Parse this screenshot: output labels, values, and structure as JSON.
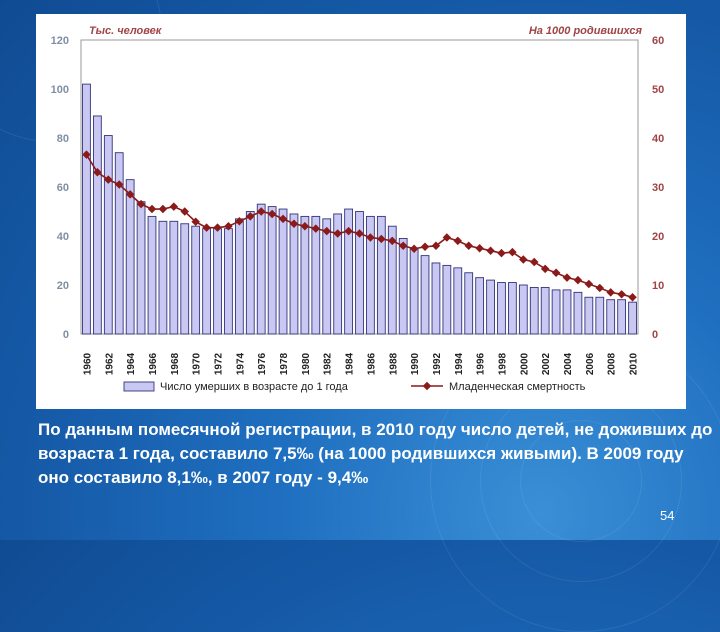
{
  "chart_data": {
    "type": "bar+line",
    "left_axis_label": "Тыс. человек",
    "right_axis_label": "На 1000 родившихся",
    "left_ylim": [
      0,
      120
    ],
    "right_ylim": [
      0,
      60
    ],
    "left_ticks": [
      "0",
      "20",
      "40",
      "60",
      "80",
      "100",
      "120"
    ],
    "right_ticks": [
      "0",
      "10",
      "20",
      "30",
      "40",
      "50",
      "60"
    ],
    "x_tick_labels": [
      "1960",
      "1962",
      "1964",
      "1966",
      "1968",
      "1970",
      "1972",
      "1974",
      "1976",
      "1978",
      "1980",
      "1982",
      "1984",
      "1986",
      "1988",
      "1990",
      "1992",
      "1994",
      "1996",
      "1998",
      "2000",
      "2002",
      "2004",
      "2006",
      "2008",
      "2010"
    ],
    "years": [
      1960,
      1961,
      1962,
      1963,
      1964,
      1965,
      1966,
      1967,
      1968,
      1969,
      1970,
      1971,
      1972,
      1973,
      1974,
      1975,
      1976,
      1977,
      1978,
      1979,
      1980,
      1981,
      1982,
      1983,
      1984,
      1985,
      1986,
      1987,
      1988,
      1989,
      1990,
      1991,
      1992,
      1993,
      1994,
      1995,
      1996,
      1997,
      1998,
      1999,
      2000,
      2001,
      2002,
      2003,
      2004,
      2005,
      2006,
      2007,
      2008,
      2009,
      2010
    ],
    "series": [
      {
        "name": "Число умерших в возрасте до 1 года",
        "type": "bar",
        "axis": "left",
        "color": "#c8c8f2",
        "values": [
          102,
          89,
          81,
          74,
          63,
          54,
          48,
          46,
          46,
          45,
          44,
          43,
          43,
          43,
          47,
          50,
          53,
          52,
          51,
          49,
          48,
          48,
          47,
          49,
          51,
          50,
          48,
          48,
          44,
          39,
          35,
          32,
          29,
          28,
          27,
          25,
          23,
          22,
          21,
          21,
          20,
          19,
          19,
          18,
          18,
          17,
          15,
          15,
          14,
          14,
          13
        ]
      },
      {
        "name": "Младенческая смертность",
        "type": "line",
        "axis": "right",
        "color": "#8b1a1a",
        "values": [
          36.6,
          33,
          31.5,
          30.5,
          28.5,
          26.5,
          25.5,
          25.5,
          26,
          25,
          22.9,
          21.7,
          21.7,
          22,
          23,
          24,
          25,
          24.5,
          23.5,
          22.5,
          22,
          21.5,
          21,
          20.5,
          21,
          20.5,
          19.7,
          19.4,
          19,
          18,
          17.4,
          17.8,
          18,
          19.7,
          19,
          18,
          17.5,
          17,
          16.5,
          16.7,
          15.2,
          14.7,
          13.3,
          12.5,
          11.5,
          11,
          10.2,
          9.4,
          8.5,
          8.1,
          7.5
        ]
      }
    ]
  },
  "caption": "По данным помесячной регистрации, в 2010 году число детей, не доживших до возраста 1 года, составило 7,5‰ (на 1000 родившихся живыми). В 2009 году оно составило 8,1‰, в 2007 году - 9,4‰",
  "page_number": "54"
}
